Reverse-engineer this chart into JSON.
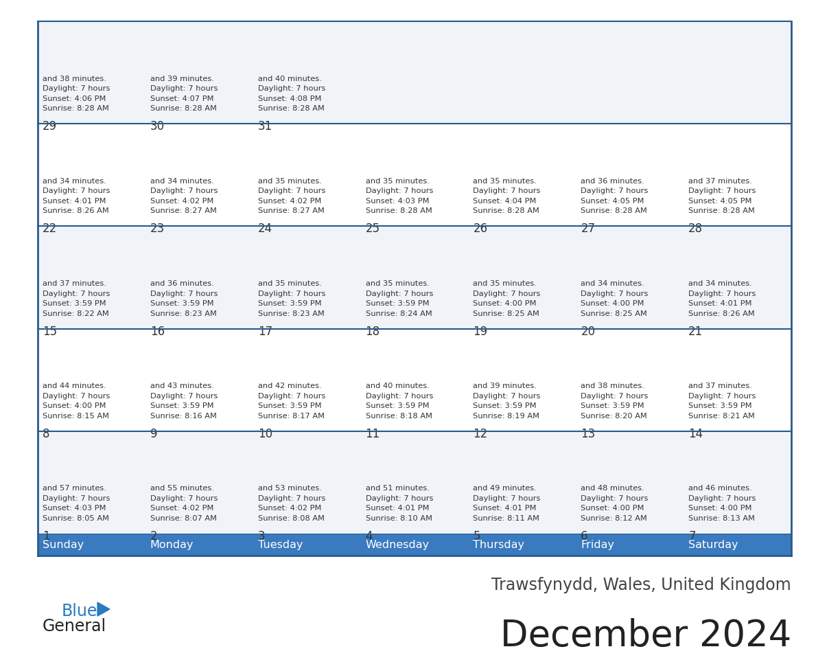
{
  "title": "December 2024",
  "subtitle": "Trawsfynydd, Wales, United Kingdom",
  "days_of_week": [
    "Sunday",
    "Monday",
    "Tuesday",
    "Wednesday",
    "Thursday",
    "Friday",
    "Saturday"
  ],
  "header_bg": "#3a7abf",
  "header_text_color": "#ffffff",
  "row_bg_odd": "#f0f4f8",
  "row_bg_even": "#ffffff",
  "border_color": "#2a5a8c",
  "cell_text_color": "#333333",
  "title_color": "#222222",
  "subtitle_color": "#444444",
  "logo_general_color": "#222222",
  "logo_blue_color": "#2a7abf",
  "calendar_data": [
    {
      "day": 1,
      "col": 0,
      "row": 0,
      "sunrise": "8:05 AM",
      "sunset": "4:03 PM",
      "daylight_min": "57"
    },
    {
      "day": 2,
      "col": 1,
      "row": 0,
      "sunrise": "8:07 AM",
      "sunset": "4:02 PM",
      "daylight_min": "55"
    },
    {
      "day": 3,
      "col": 2,
      "row": 0,
      "sunrise": "8:08 AM",
      "sunset": "4:02 PM",
      "daylight_min": "53"
    },
    {
      "day": 4,
      "col": 3,
      "row": 0,
      "sunrise": "8:10 AM",
      "sunset": "4:01 PM",
      "daylight_min": "51"
    },
    {
      "day": 5,
      "col": 4,
      "row": 0,
      "sunrise": "8:11 AM",
      "sunset": "4:01 PM",
      "daylight_min": "49"
    },
    {
      "day": 6,
      "col": 5,
      "row": 0,
      "sunrise": "8:12 AM",
      "sunset": "4:00 PM",
      "daylight_min": "48"
    },
    {
      "day": 7,
      "col": 6,
      "row": 0,
      "sunrise": "8:13 AM",
      "sunset": "4:00 PM",
      "daylight_min": "46"
    },
    {
      "day": 8,
      "col": 0,
      "row": 1,
      "sunrise": "8:15 AM",
      "sunset": "4:00 PM",
      "daylight_min": "44"
    },
    {
      "day": 9,
      "col": 1,
      "row": 1,
      "sunrise": "8:16 AM",
      "sunset": "3:59 PM",
      "daylight_min": "43"
    },
    {
      "day": 10,
      "col": 2,
      "row": 1,
      "sunrise": "8:17 AM",
      "sunset": "3:59 PM",
      "daylight_min": "42"
    },
    {
      "day": 11,
      "col": 3,
      "row": 1,
      "sunrise": "8:18 AM",
      "sunset": "3:59 PM",
      "daylight_min": "40"
    },
    {
      "day": 12,
      "col": 4,
      "row": 1,
      "sunrise": "8:19 AM",
      "sunset": "3:59 PM",
      "daylight_min": "39"
    },
    {
      "day": 13,
      "col": 5,
      "row": 1,
      "sunrise": "8:20 AM",
      "sunset": "3:59 PM",
      "daylight_min": "38"
    },
    {
      "day": 14,
      "col": 6,
      "row": 1,
      "sunrise": "8:21 AM",
      "sunset": "3:59 PM",
      "daylight_min": "37"
    },
    {
      "day": 15,
      "col": 0,
      "row": 2,
      "sunrise": "8:22 AM",
      "sunset": "3:59 PM",
      "daylight_min": "37"
    },
    {
      "day": 16,
      "col": 1,
      "row": 2,
      "sunrise": "8:23 AM",
      "sunset": "3:59 PM",
      "daylight_min": "36"
    },
    {
      "day": 17,
      "col": 2,
      "row": 2,
      "sunrise": "8:23 AM",
      "sunset": "3:59 PM",
      "daylight_min": "35"
    },
    {
      "day": 18,
      "col": 3,
      "row": 2,
      "sunrise": "8:24 AM",
      "sunset": "3:59 PM",
      "daylight_min": "35"
    },
    {
      "day": 19,
      "col": 4,
      "row": 2,
      "sunrise": "8:25 AM",
      "sunset": "4:00 PM",
      "daylight_min": "35"
    },
    {
      "day": 20,
      "col": 5,
      "row": 2,
      "sunrise": "8:25 AM",
      "sunset": "4:00 PM",
      "daylight_min": "34"
    },
    {
      "day": 21,
      "col": 6,
      "row": 2,
      "sunrise": "8:26 AM",
      "sunset": "4:01 PM",
      "daylight_min": "34"
    },
    {
      "day": 22,
      "col": 0,
      "row": 3,
      "sunrise": "8:26 AM",
      "sunset": "4:01 PM",
      "daylight_min": "34"
    },
    {
      "day": 23,
      "col": 1,
      "row": 3,
      "sunrise": "8:27 AM",
      "sunset": "4:02 PM",
      "daylight_min": "34"
    },
    {
      "day": 24,
      "col": 2,
      "row": 3,
      "sunrise": "8:27 AM",
      "sunset": "4:02 PM",
      "daylight_min": "35"
    },
    {
      "day": 25,
      "col": 3,
      "row": 3,
      "sunrise": "8:28 AM",
      "sunset": "4:03 PM",
      "daylight_min": "35"
    },
    {
      "day": 26,
      "col": 4,
      "row": 3,
      "sunrise": "8:28 AM",
      "sunset": "4:04 PM",
      "daylight_min": "35"
    },
    {
      "day": 27,
      "col": 5,
      "row": 3,
      "sunrise": "8:28 AM",
      "sunset": "4:05 PM",
      "daylight_min": "36"
    },
    {
      "day": 28,
      "col": 6,
      "row": 3,
      "sunrise": "8:28 AM",
      "sunset": "4:05 PM",
      "daylight_min": "37"
    },
    {
      "day": 29,
      "col": 0,
      "row": 4,
      "sunrise": "8:28 AM",
      "sunset": "4:06 PM",
      "daylight_min": "38"
    },
    {
      "day": 30,
      "col": 1,
      "row": 4,
      "sunrise": "8:28 AM",
      "sunset": "4:07 PM",
      "daylight_min": "39"
    },
    {
      "day": 31,
      "col": 2,
      "row": 4,
      "sunrise": "8:28 AM",
      "sunset": "4:08 PM",
      "daylight_min": "40"
    }
  ]
}
